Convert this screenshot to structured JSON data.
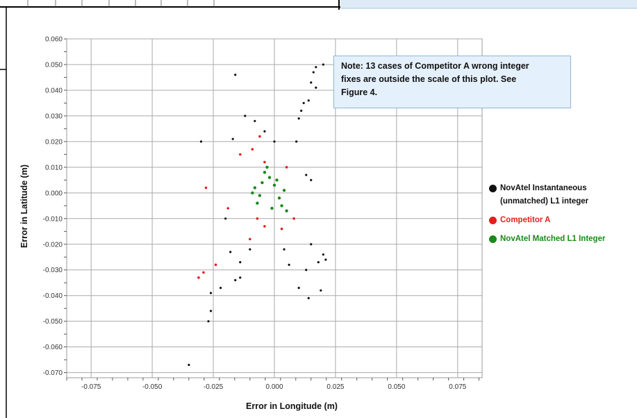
{
  "note": "Note: 13 cases of Competitor A wrong integer fixes are outside the scale of this plot. See Figure 4.",
  "note_lines": [
    "Note: 13 cases of Competitor A wrong integer",
    "fixes are outside the scale of this plot. See",
    "Figure 4."
  ],
  "legend": {
    "instantaneous_line1": "NovAtel Instantaneous",
    "instantaneous_line2": "(unmatched) L1 integer",
    "competitor": "Competitor A",
    "matched": "NovAtel Matched L1 Integer"
  },
  "colors": {
    "instantaneous": "#111111",
    "competitor": "#e41e1e",
    "matched": "#1a8a1a",
    "note_bg": "#e4f0fb"
  },
  "chart_data": {
    "type": "scatter",
    "xlabel": "Error in Longitude (m)",
    "ylabel": "Error in Latitude (m)",
    "xlim": [
      -0.085,
      0.085
    ],
    "ylim": [
      -0.072,
      0.06
    ],
    "x_ticks": [
      "-0.075",
      "-0.050",
      "-0.025",
      "0.000",
      "0.025",
      "0.050",
      "0.075"
    ],
    "y_ticks": [
      "0.060",
      "0.050",
      "0.040",
      "0.030",
      "0.020",
      "0.010",
      "0.000",
      "-0.010",
      "-0.020",
      "-0.030",
      "-0.040",
      "-0.050",
      "-0.060",
      "-0.070"
    ],
    "grid": true,
    "legend_position": "right",
    "series": [
      {
        "name": "NovAtel Instantaneous (unmatched) L1 integer",
        "color": "#111111",
        "points": [
          [
            -0.035,
            -0.067
          ],
          [
            -0.027,
            -0.05
          ],
          [
            -0.026,
            -0.046
          ],
          [
            -0.026,
            -0.039
          ],
          [
            -0.022,
            -0.037
          ],
          [
            -0.016,
            -0.034
          ],
          [
            -0.014,
            -0.033
          ],
          [
            -0.016,
            0.046
          ],
          [
            -0.03,
            0.02
          ],
          [
            0.016,
            0.047
          ],
          [
            0.017,
            0.049
          ],
          [
            0.02,
            0.05
          ],
          [
            0.015,
            0.043
          ],
          [
            0.017,
            0.041
          ],
          [
            0.012,
            0.035
          ],
          [
            0.014,
            0.036
          ],
          [
            0.011,
            0.032
          ],
          [
            0.01,
            0.029
          ],
          [
            0.019,
            -0.038
          ],
          [
            0.014,
            -0.041
          ],
          [
            0.01,
            -0.037
          ],
          [
            0.018,
            -0.027
          ],
          [
            0.021,
            -0.026
          ],
          [
            0.013,
            -0.03
          ],
          [
            0.015,
            -0.02
          ],
          [
            0.02,
            -0.024
          ],
          [
            0.013,
            0.007
          ],
          [
            0.015,
            0.005
          ],
          [
            -0.018,
            -0.023
          ],
          [
            -0.014,
            -0.027
          ],
          [
            -0.02,
            -0.01
          ],
          [
            -0.017,
            0.021
          ],
          [
            -0.012,
            0.03
          ],
          [
            -0.008,
            0.028
          ],
          [
            -0.004,
            0.024
          ],
          [
            0.0,
            0.02
          ],
          [
            0.004,
            -0.022
          ],
          [
            0.006,
            -0.028
          ],
          [
            -0.01,
            -0.022
          ],
          [
            0.009,
            0.02
          ]
        ]
      },
      {
        "name": "Competitor A",
        "color": "#e41e1e",
        "points": [
          [
            -0.031,
            -0.033
          ],
          [
            -0.029,
            -0.031
          ],
          [
            -0.024,
            -0.028
          ],
          [
            -0.028,
            0.002
          ],
          [
            -0.019,
            -0.006
          ],
          [
            -0.014,
            0.015
          ],
          [
            -0.01,
            -0.018
          ],
          [
            -0.007,
            -0.01
          ],
          [
            -0.004,
            0.012
          ],
          [
            0.005,
            0.01
          ],
          [
            0.008,
            -0.01
          ],
          [
            -0.004,
            -0.013
          ],
          [
            -0.009,
            0.017
          ],
          [
            -0.006,
            0.022
          ],
          [
            0.003,
            -0.014
          ]
        ]
      },
      {
        "name": "NovAtel Matched L1 Integer",
        "color": "#1a8a1a",
        "points": [
          [
            -0.008,
            0.002
          ],
          [
            -0.006,
            -0.001
          ],
          [
            -0.005,
            0.004
          ],
          [
            -0.004,
            0.008
          ],
          [
            -0.003,
            0.01
          ],
          [
            -0.002,
            0.006
          ],
          [
            0.0,
            0.003
          ],
          [
            0.002,
            -0.002
          ],
          [
            0.003,
            -0.005
          ],
          [
            -0.007,
            -0.004
          ],
          [
            -0.001,
            -0.006
          ],
          [
            0.004,
            0.001
          ],
          [
            0.005,
            -0.007
          ],
          [
            -0.009,
            0.0
          ],
          [
            0.001,
            0.005
          ]
        ]
      }
    ]
  }
}
